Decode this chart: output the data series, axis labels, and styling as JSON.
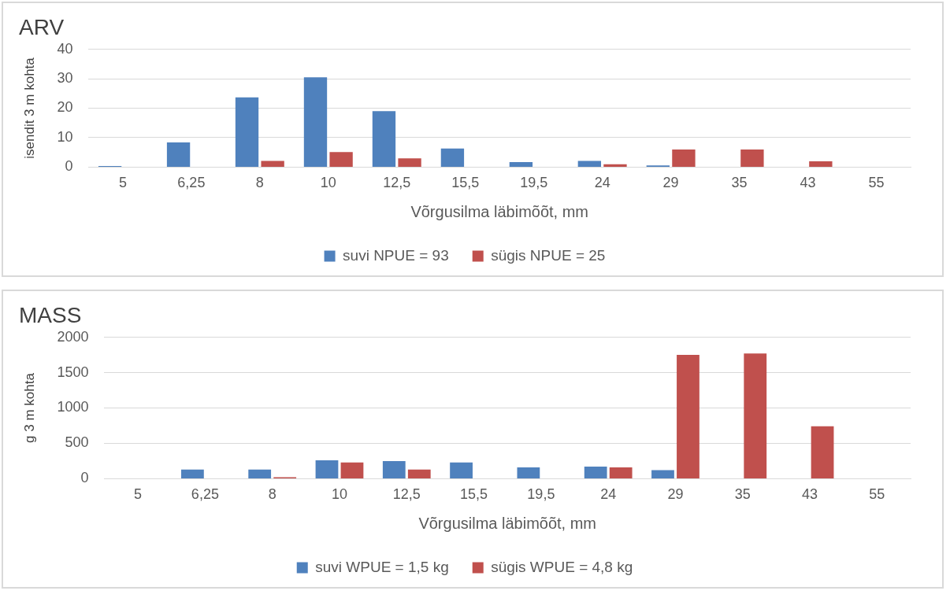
{
  "chart_data": [
    {
      "type": "bar",
      "title": "ARV",
      "xlabel": "Võrgusilma läbimõõt, mm",
      "ylabel": "isendit 3 m kohta",
      "categories": [
        "5",
        "6,25",
        "8",
        "10",
        "12,5",
        "15,5",
        "19,5",
        "24",
        "29",
        "35",
        "43",
        "55"
      ],
      "series": [
        {
          "name": "suvi NPUE = 93",
          "color": "#4f81bd",
          "values": [
            0.4,
            8.4,
            23.7,
            30.5,
            19.0,
            6.3,
            1.7,
            2.1,
            0.6,
            0,
            0,
            0
          ]
        },
        {
          "name": "sügis NPUE = 25",
          "color": "#c0504d",
          "values": [
            0,
            0,
            2.1,
            5.1,
            3.0,
            0,
            0,
            1.0,
            6.0,
            6.0,
            2.0,
            0
          ]
        }
      ],
      "ylim": [
        0,
        40
      ],
      "yticks": [
        0,
        10,
        20,
        30,
        40
      ],
      "grid": "y",
      "legend": "bottom"
    },
    {
      "type": "bar",
      "title": "MASS",
      "xlabel": "Võrgusilma läbimõõt, mm",
      "ylabel": "g 3 m kohta",
      "categories": [
        "5",
        "6,25",
        "8",
        "10",
        "12,5",
        "15,5",
        "19,5",
        "24",
        "29",
        "35",
        "43",
        "55"
      ],
      "series": [
        {
          "name": "suvi WPUE = 1,5 kg",
          "color": "#4f81bd",
          "values": [
            0,
            130,
            130,
            260,
            250,
            230,
            160,
            170,
            120,
            0,
            0,
            0
          ]
        },
        {
          "name": "sügis WPUE = 4,8 kg",
          "color": "#c0504d",
          "values": [
            0,
            0,
            20,
            230,
            130,
            0,
            0,
            160,
            1750,
            1770,
            740,
            0
          ]
        }
      ],
      "ylim": [
        0,
        2000
      ],
      "yticks": [
        0,
        500,
        1000,
        1500,
        2000
      ],
      "grid": "y",
      "legend": "bottom"
    }
  ]
}
